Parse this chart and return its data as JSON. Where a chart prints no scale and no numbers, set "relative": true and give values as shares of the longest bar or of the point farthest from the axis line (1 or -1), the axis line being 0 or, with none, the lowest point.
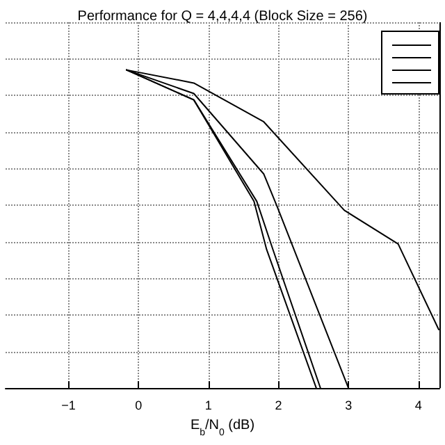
{
  "chart_data": {
    "type": "line",
    "title": "Performance for Q = 4,4,4,4 (Block Size = 256)",
    "xlabel": "E$_{b}$/N$_{0}$ (dB)",
    "relative": true,
    "xlim": [
      -1.9,
      4.3
    ],
    "xticks": [
      -1,
      0,
      1,
      2,
      3,
      4
    ],
    "grid": true,
    "marker": "none",
    "line_style": "solid",
    "series": [
      {
        "color": "#000000",
        "x": [
          -0.17,
          0.79,
          1.79,
          2.94,
          3.71,
          4.29
        ],
        "values": [
          1,
          0.959,
          0.837,
          0.559,
          0.453,
          0.184
        ]
      },
      {
        "color": "#000000",
        "x": [
          -0.17,
          0.79,
          1.79,
          1.98,
          3.0
        ],
        "values": [
          1,
          0.926,
          0.673,
          0.571,
          0
        ]
      },
      {
        "color": "#000000",
        "x": [
          -0.17,
          0.79,
          1.65,
          1.83,
          2.54
        ],
        "values": [
          1,
          0.906,
          0.587,
          0.436,
          0
        ]
      },
      {
        "color": "#000000",
        "x": [
          -0.17,
          0.79,
          1.69,
          1.92,
          2.6
        ],
        "values": [
          1,
          0.906,
          0.587,
          0.436,
          0
        ]
      }
    ]
  }
}
